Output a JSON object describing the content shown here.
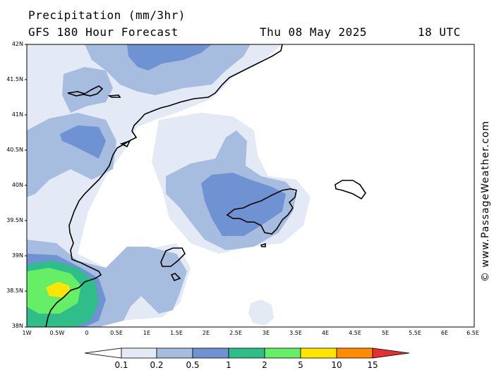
{
  "header": {
    "title": "Precipitation (mm/3hr)",
    "subtitle": "GFS 180 Hour Forecast",
    "date": "Thu 08 May 2025",
    "time": "18 UTC"
  },
  "map": {
    "lat_labels": [
      "42N",
      "41.5N",
      "41N",
      "40.5N",
      "40N",
      "39.5N",
      "39N",
      "38.5N",
      "38N"
    ],
    "lon_labels": [
      "1W",
      "0.5W",
      "0",
      "0.5E",
      "1E",
      "1.5E",
      "2E",
      "2.5E",
      "3E",
      "3.5E",
      "4E",
      "4.5E",
      "5E",
      "5.5E",
      "6E",
      "6.5E"
    ],
    "extent": {
      "lat_min": 38,
      "lat_max": 42,
      "lon_min": -1,
      "lon_max": 6.5
    }
  },
  "legend": {
    "labels": [
      "0.1",
      "0.2",
      "0.5",
      "1",
      "2",
      "5",
      "10",
      "15"
    ],
    "colors": [
      "#ffffff",
      "#e4e9f6",
      "#a6bde0",
      "#6f92d2",
      "#2fbd8a",
      "#66ee66",
      "#ffe600",
      "#ff8c00",
      "#e33030"
    ]
  },
  "watermark": "© www.PassageWeather.com"
}
